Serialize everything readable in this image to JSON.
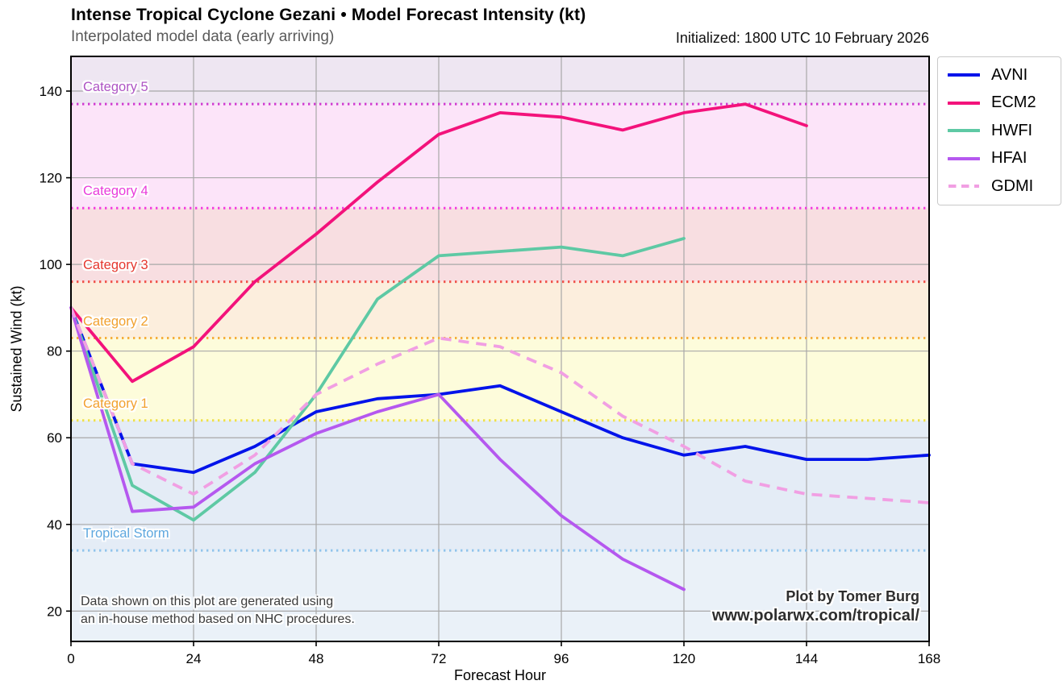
{
  "header": {
    "title": "Intense Tropical Cyclone Gezani • Model Forecast Intensity (kt)",
    "subtitle": "Interpolated model data (early arriving)",
    "initialized": "Initialized: 1800 UTC 10 February 2026"
  },
  "chart_data": {
    "type": "line",
    "title": "Intense Tropical Cyclone Gezani • Model Forecast Intensity (kt)",
    "xlabel": "Forecast Hour",
    "ylabel": "Sustained Wind (kt)",
    "xlim": [
      0,
      168
    ],
    "ylim": [
      13,
      148
    ],
    "x_ticks": [
      0,
      24,
      48,
      72,
      96,
      120,
      144,
      168
    ],
    "y_ticks": [
      20,
      40,
      60,
      80,
      100,
      120,
      140
    ],
    "grid": true,
    "grid_color": "#a8a8a8",
    "legend_position": "outside upper right",
    "bands": [
      {
        "name": "category-5",
        "label": "Category 5",
        "min": 137,
        "max": 148,
        "fill": "#eee6f2",
        "label_color": "#ae54c4",
        "boundary_color": "#d03ad0"
      },
      {
        "name": "category-4",
        "label": "Category 4",
        "min": 113,
        "max": 137,
        "fill": "#fce4f9",
        "label_color": "#e93bdb",
        "boundary_color": "#f23ce0"
      },
      {
        "name": "category-3",
        "label": "Category 3",
        "min": 96,
        "max": 113,
        "fill": "#f8dee1",
        "label_color": "#e5372e",
        "boundary_color": "#f0534b"
      },
      {
        "name": "category-2",
        "label": "Category 2",
        "min": 83,
        "max": 96,
        "fill": "#fceedd",
        "label_color": "#f2a12e",
        "boundary_color": "#f5ae3d"
      },
      {
        "name": "category-1",
        "label": "Category 1",
        "min": 64,
        "max": 83,
        "fill": "#fdfcdb",
        "label_color": "#f2a12e",
        "boundary_color": "#efe04a"
      },
      {
        "name": "tropical-storm",
        "label": "Tropical Storm",
        "min": 34,
        "max": 64,
        "fill": "#e4ecf6",
        "label_color": "#5fa8df",
        "boundary_color": "#90c4ec"
      },
      {
        "name": "tropical-depression",
        "label": "",
        "min": 13,
        "max": 34,
        "fill": "#eaf1f8",
        "label_color": "",
        "boundary_color": ""
      }
    ],
    "series": [
      {
        "name": "AVNI",
        "color": "#0213ea",
        "dash": null,
        "hours": [
          0,
          12,
          24,
          36,
          48,
          60,
          72,
          84,
          96,
          108,
          120,
          132,
          144,
          156,
          168
        ],
        "values": [
          90,
          54,
          52,
          58,
          66,
          69,
          70,
          72,
          66,
          60,
          56,
          58,
          55,
          55,
          56
        ]
      },
      {
        "name": "ECM2",
        "color": "#f3127b",
        "dash": null,
        "hours": [
          0,
          12,
          24,
          36,
          48,
          60,
          72,
          84,
          96,
          108,
          120,
          132,
          144
        ],
        "values": [
          90,
          73,
          81,
          96,
          107,
          119,
          130,
          135,
          134,
          131,
          135,
          137,
          132
        ]
      },
      {
        "name": "HWFI",
        "color": "#5ec9a4",
        "dash": null,
        "hours": [
          0,
          12,
          24,
          36,
          48,
          60,
          72,
          84,
          96,
          108,
          120
        ],
        "values": [
          90,
          49,
          41,
          52,
          70,
          92,
          102,
          103,
          104,
          102,
          106
        ]
      },
      {
        "name": "HFAI",
        "color": "#b558ef",
        "dash": null,
        "hours": [
          0,
          12,
          24,
          36,
          48,
          60,
          72,
          84,
          96,
          108,
          120
        ],
        "values": [
          90,
          43,
          44,
          54,
          61,
          66,
          70,
          55,
          42,
          32,
          25
        ]
      },
      {
        "name": "GDMI",
        "color": "#f19fe3",
        "dash": [
          13,
          9
        ],
        "hours": [
          0,
          12,
          24,
          36,
          48,
          60,
          72,
          84,
          96,
          108,
          120,
          132,
          144,
          156,
          168
        ],
        "values": [
          90,
          54,
          47,
          56,
          70,
          77,
          83,
          81,
          75,
          65,
          58,
          50,
          47,
          46,
          45
        ]
      }
    ]
  },
  "legend": {
    "items": [
      {
        "label": "AVNI",
        "color": "#0213ea",
        "dashed": false
      },
      {
        "label": "ECM2",
        "color": "#f3127b",
        "dashed": false
      },
      {
        "label": "HWFI",
        "color": "#5ec9a4",
        "dashed": false
      },
      {
        "label": "HFAI",
        "color": "#b558ef",
        "dashed": false
      },
      {
        "label": "GDMI",
        "color": "#f19fe3",
        "dashed": true
      }
    ]
  },
  "annotations": {
    "disclaimer_line1": "Data shown on this plot are generated using",
    "disclaimer_line2": "an in-house method based on NHC procedures.",
    "credit_line1": "Plot by Tomer Burg",
    "credit_line2": "www.polarwx.com/tropical/"
  }
}
